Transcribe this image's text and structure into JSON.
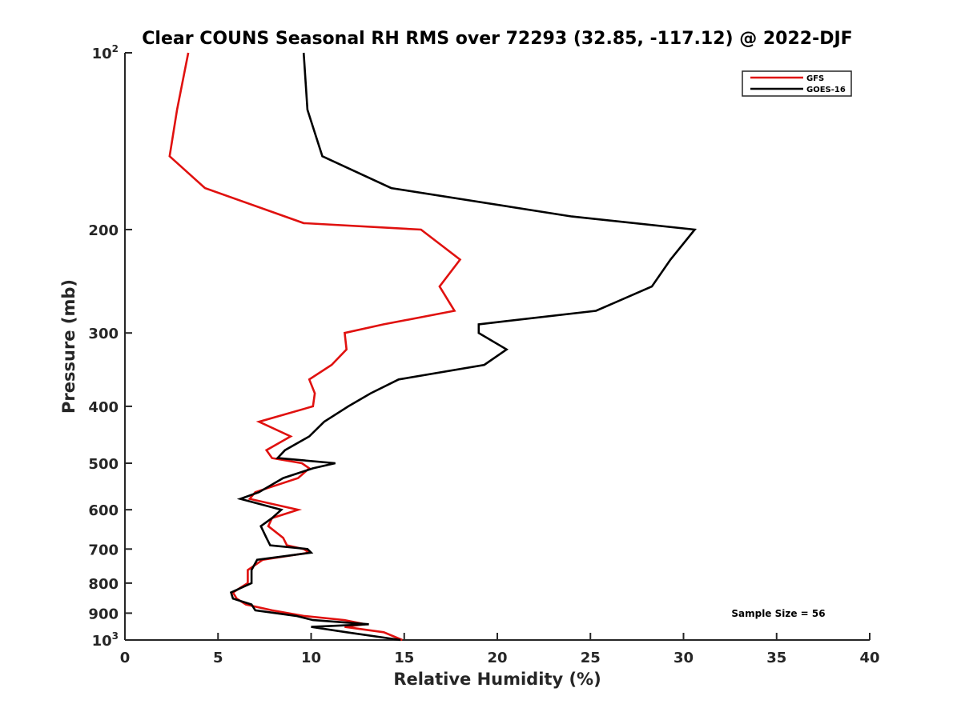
{
  "chart_data": {
    "type": "line",
    "title": "Clear COUNS Seasonal RH RMS over 72293 (32.85, -117.12) @ 2022-DJF",
    "xlabel": "Relative Humidity (%)",
    "ylabel": "Pressure (mb)",
    "xlim": [
      0,
      40
    ],
    "ylim": [
      100,
      1000
    ],
    "y_scale": "log",
    "y_reversed": true,
    "grid": false,
    "legend_position": "top-right",
    "x_ticks": [
      "0",
      "5",
      "10",
      "15",
      "20",
      "25",
      "30",
      "35",
      "40"
    ],
    "y_ticks": [
      {
        "value": 100,
        "base": "10",
        "exp": "2"
      },
      {
        "value": 200,
        "label": "200"
      },
      {
        "value": 300,
        "label": "300"
      },
      {
        "value": 400,
        "label": "400"
      },
      {
        "value": 500,
        "label": "500"
      },
      {
        "value": 600,
        "label": "600"
      },
      {
        "value": 700,
        "label": "700"
      },
      {
        "value": 800,
        "label": "800"
      },
      {
        "value": 900,
        "label": "900"
      },
      {
        "value": 1000,
        "base": "10",
        "exp": "3"
      }
    ],
    "series": [
      {
        "name": "GFS",
        "color": "#e0110f",
        "points": [
          [
            3.4,
            100
          ],
          [
            2.8,
            125
          ],
          [
            2.4,
            150
          ],
          [
            4.3,
            170
          ],
          [
            9.6,
            195
          ],
          [
            15.9,
            200
          ],
          [
            18.0,
            225
          ],
          [
            16.9,
            250
          ],
          [
            17.7,
            275
          ],
          [
            13.9,
            290
          ],
          [
            11.8,
            300
          ],
          [
            11.9,
            320
          ],
          [
            11.1,
            340
          ],
          [
            9.9,
            360
          ],
          [
            10.2,
            380
          ],
          [
            10.1,
            400
          ],
          [
            7.2,
            425
          ],
          [
            8.9,
            450
          ],
          [
            7.6,
            475
          ],
          [
            7.9,
            490
          ],
          [
            9.5,
            500
          ],
          [
            9.9,
            510
          ],
          [
            9.3,
            530
          ],
          [
            7.0,
            560
          ],
          [
            6.7,
            575
          ],
          [
            9.3,
            600
          ],
          [
            7.9,
            620
          ],
          [
            7.7,
            640
          ],
          [
            8.5,
            670
          ],
          [
            8.7,
            690
          ],
          [
            9.6,
            700
          ],
          [
            9.9,
            710
          ],
          [
            7.4,
            730
          ],
          [
            6.6,
            760
          ],
          [
            6.6,
            800
          ],
          [
            5.8,
            830
          ],
          [
            6.0,
            850
          ],
          [
            6.5,
            870
          ],
          [
            7.9,
            890
          ],
          [
            9.6,
            910
          ],
          [
            11.8,
            925
          ],
          [
            12.9,
            940
          ],
          [
            11.8,
            950
          ],
          [
            13.9,
            970
          ],
          [
            14.9,
            1000
          ]
        ]
      },
      {
        "name": "GOES-16",
        "color": "#000000",
        "points": [
          [
            9.6,
            100
          ],
          [
            9.8,
            125
          ],
          [
            10.6,
            150
          ],
          [
            14.3,
            170
          ],
          [
            24.0,
            190
          ],
          [
            30.6,
            200
          ],
          [
            29.3,
            225
          ],
          [
            28.3,
            250
          ],
          [
            25.3,
            275
          ],
          [
            19.0,
            290
          ],
          [
            19.0,
            300
          ],
          [
            20.5,
            320
          ],
          [
            19.3,
            340
          ],
          [
            14.7,
            360
          ],
          [
            13.2,
            380
          ],
          [
            12.0,
            400
          ],
          [
            10.7,
            425
          ],
          [
            9.9,
            450
          ],
          [
            8.6,
            475
          ],
          [
            8.2,
            490
          ],
          [
            11.3,
            500
          ],
          [
            10.1,
            510
          ],
          [
            8.5,
            530
          ],
          [
            7.2,
            560
          ],
          [
            6.2,
            575
          ],
          [
            8.4,
            600
          ],
          [
            7.9,
            620
          ],
          [
            7.3,
            640
          ],
          [
            7.6,
            670
          ],
          [
            7.8,
            690
          ],
          [
            9.8,
            700
          ],
          [
            10.0,
            710
          ],
          [
            7.1,
            730
          ],
          [
            6.8,
            760
          ],
          [
            6.8,
            800
          ],
          [
            5.7,
            830
          ],
          [
            5.8,
            850
          ],
          [
            6.8,
            870
          ],
          [
            7.0,
            890
          ],
          [
            9.2,
            910
          ],
          [
            10.1,
            925
          ],
          [
            13.1,
            940
          ],
          [
            10.0,
            950
          ],
          [
            11.9,
            970
          ],
          [
            14.8,
            1000
          ]
        ]
      }
    ],
    "annotation": "Sample Size = 56"
  }
}
